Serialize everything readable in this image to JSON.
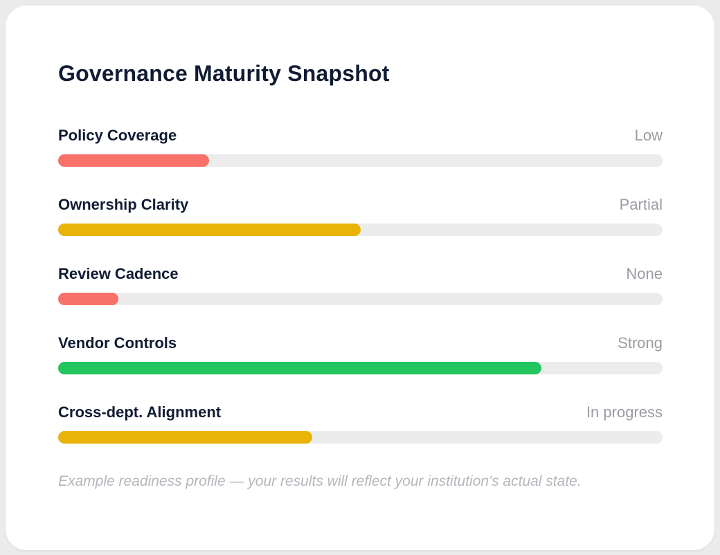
{
  "card": {
    "title": "Governance Maturity Snapshot",
    "rows": [
      {
        "label": "Policy Coverage",
        "value": "Low",
        "percent": 25,
        "color": "#f8716a"
      },
      {
        "label": "Ownership Clarity",
        "value": "Partial",
        "percent": 50,
        "color": "#eab308"
      },
      {
        "label": "Review Cadence",
        "value": "None",
        "percent": 10,
        "color": "#f8716a"
      },
      {
        "label": "Vendor Controls",
        "value": "Strong",
        "percent": 80,
        "color": "#22c55e"
      },
      {
        "label": "Cross-dept. Alignment",
        "value": "In progress",
        "percent": 42,
        "color": "#eab308"
      }
    ],
    "footnote": "Example readiness profile — your results will reflect your institution's actual state."
  },
  "colors": {
    "background": "#ebebeb",
    "card": "#ffffff",
    "heading_text": "#101c33",
    "value_text": "#9b9ba3",
    "footnote_text": "#b6b6bd",
    "bar_track": "#ececec",
    "bar_red": "#f8716a",
    "bar_yellow": "#eab308",
    "bar_green": "#22c55e"
  }
}
